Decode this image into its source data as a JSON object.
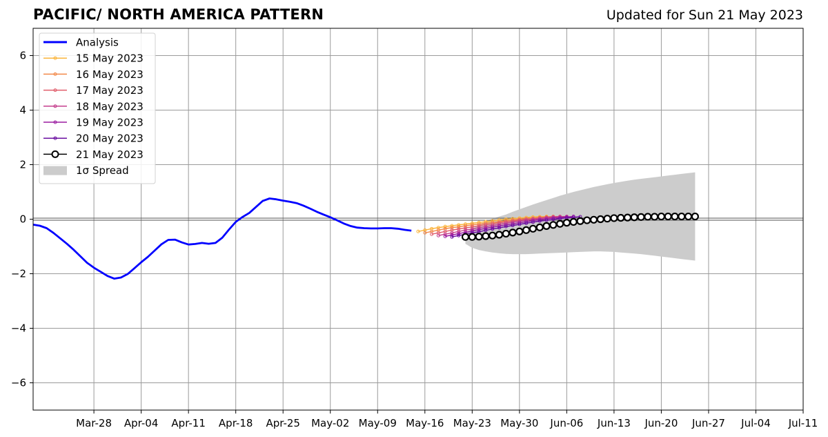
{
  "header": {
    "title": "PACIFIC/ NORTH AMERICA PATTERN",
    "updated": "Updated for Sun 21 May 2023"
  },
  "chart_data": {
    "type": "line",
    "title": "PACIFIC/ NORTH AMERICA PATTERN",
    "subtitle": "Updated for Sun 21 May 2023",
    "xlabel": "",
    "ylabel": "",
    "xlim": [
      "2023-03-19",
      "2023-07-11"
    ],
    "ylim": [
      -7,
      7
    ],
    "grid": true,
    "legend_position": "upper-left",
    "x_ticks": [
      "Mar-28",
      "Apr-04",
      "Apr-11",
      "Apr-18",
      "Apr-25",
      "May-02",
      "May-09",
      "May-16",
      "May-23",
      "May-30",
      "Jun-06",
      "Jun-13",
      "Jun-20",
      "Jun-27",
      "Jul-04",
      "Jul-11"
    ],
    "x_tick_dates": [
      "2023-03-28",
      "2023-04-04",
      "2023-04-11",
      "2023-04-18",
      "2023-04-25",
      "2023-05-02",
      "2023-05-09",
      "2023-05-16",
      "2023-05-23",
      "2023-05-30",
      "2023-06-06",
      "2023-06-13",
      "2023-06-20",
      "2023-06-27",
      "2023-07-04",
      "2023-07-11"
    ],
    "y_ticks": [
      6,
      4,
      2,
      0,
      -2,
      -4,
      -6
    ],
    "y_tick_labels": [
      "6",
      "4",
      "2",
      "0",
      "−2",
      "−4",
      "−6"
    ],
    "legend": [
      "Analysis",
      "15 May 2023",
      "16 May 2023",
      "17 May 2023",
      "18 May 2023",
      "19 May 2023",
      "20 May 2023",
      "21 May 2023",
      "1σ Spread"
    ],
    "analysis": {
      "name": "Analysis",
      "color": "#0000ff",
      "start_date": "2023-03-19",
      "values": [
        -0.2,
        -0.24,
        -0.33,
        -0.5,
        -0.7,
        -0.9,
        -1.12,
        -1.36,
        -1.6,
        -1.78,
        -1.93,
        -2.08,
        -2.18,
        -2.14,
        -2.01,
        -1.8,
        -1.58,
        -1.38,
        -1.15,
        -0.92,
        -0.76,
        -0.75,
        -0.85,
        -0.93,
        -0.91,
        -0.87,
        -0.9,
        -0.87,
        -0.68,
        -0.38,
        -0.1,
        0.08,
        0.23,
        0.45,
        0.67,
        0.76,
        0.73,
        0.68,
        0.64,
        0.59,
        0.5,
        0.39,
        0.27,
        0.17,
        0.07,
        -0.04,
        -0.16,
        -0.25,
        -0.31,
        -0.33,
        -0.34,
        -0.34,
        -0.33,
        -0.33,
        -0.35,
        -0.39,
        -0.42
      ]
    },
    "forecasts": [
      {
        "name": "15 May 2023",
        "color": "#fbb43a",
        "start_date": "2023-05-15",
        "values": [
          -0.45,
          -0.4,
          -0.35,
          -0.31,
          -0.27,
          -0.24,
          -0.21,
          -0.18,
          -0.15,
          -0.12,
          -0.09,
          -0.06,
          -0.03,
          0,
          0.02,
          0.04,
          0.06,
          0.08,
          0.09,
          0.1
        ]
      },
      {
        "name": "16 May 2023",
        "color": "#f28848",
        "start_date": "2023-05-16",
        "values": [
          -0.5,
          -0.45,
          -0.4,
          -0.35,
          -0.31,
          -0.28,
          -0.24,
          -0.21,
          -0.18,
          -0.15,
          -0.12,
          -0.09,
          -0.06,
          -0.03,
          0,
          0.02,
          0.04,
          0.06,
          0.08,
          0.1
        ]
      },
      {
        "name": "17 May 2023",
        "color": "#e05c6a",
        "start_date": "2023-05-17",
        "values": [
          -0.55,
          -0.5,
          -0.45,
          -0.4,
          -0.36,
          -0.32,
          -0.28,
          -0.24,
          -0.2,
          -0.17,
          -0.13,
          -0.1,
          -0.06,
          -0.03,
          0,
          0.02,
          0.05,
          0.07,
          0.09,
          0.1
        ]
      },
      {
        "name": "18 May 2023",
        "color": "#c43e8c",
        "start_date": "2023-05-18",
        "values": [
          -0.6,
          -0.55,
          -0.5,
          -0.45,
          -0.4,
          -0.36,
          -0.31,
          -0.27,
          -0.23,
          -0.19,
          -0.15,
          -0.11,
          -0.07,
          -0.04,
          -0.01,
          0.02,
          0.05,
          0.07,
          0.09,
          0.1
        ]
      },
      {
        "name": "19 May 2023",
        "color": "#9a1aa0",
        "start_date": "2023-05-19",
        "values": [
          -0.63,
          -0.58,
          -0.53,
          -0.48,
          -0.43,
          -0.38,
          -0.34,
          -0.29,
          -0.25,
          -0.21,
          -0.17,
          -0.13,
          -0.09,
          -0.05,
          -0.02,
          0.01,
          0.04,
          0.06,
          0.08,
          0.1
        ]
      },
      {
        "name": "20 May 2023",
        "color": "#6a0da0",
        "start_date": "2023-05-20",
        "values": [
          -0.65,
          -0.6,
          -0.55,
          -0.5,
          -0.46,
          -0.41,
          -0.36,
          -0.32,
          -0.27,
          -0.23,
          -0.19,
          -0.15,
          -0.11,
          -0.07,
          -0.04,
          -0.01,
          0.02,
          0.05,
          0.07,
          0.09
        ]
      }
    ],
    "forecast_main": {
      "name": "21 May 2023",
      "color": "#000000",
      "start_date": "2023-05-22",
      "values": [
        -0.65,
        -0.65,
        -0.64,
        -0.62,
        -0.6,
        -0.57,
        -0.53,
        -0.49,
        -0.45,
        -0.4,
        -0.35,
        -0.3,
        -0.25,
        -0.21,
        -0.17,
        -0.13,
        -0.1,
        -0.07,
        -0.04,
        -0.02,
        0,
        0.02,
        0.04,
        0.05,
        0.06,
        0.07,
        0.08,
        0.09,
        0.09,
        0.1,
        0.1,
        0.1,
        0.1,
        0.1,
        0.1
      ]
    },
    "spread": {
      "name": "1σ Spread",
      "color": "#cccccc",
      "start_date": "2023-05-22",
      "upper": [
        -0.5,
        -0.35,
        -0.2,
        -0.08,
        0.02,
        0.1,
        0.17,
        0.27,
        0.36,
        0.45,
        0.54,
        0.62,
        0.7,
        0.78,
        0.86,
        0.93,
        1.0,
        1.06,
        1.12,
        1.18,
        1.23,
        1.28,
        1.33,
        1.37,
        1.41,
        1.45,
        1.48,
        1.51,
        1.54,
        1.57,
        1.6,
        1.63,
        1.66,
        1.69,
        1.72
      ],
      "lower": [
        -0.9,
        -1.05,
        -1.13,
        -1.18,
        -1.22,
        -1.25,
        -1.27,
        -1.28,
        -1.28,
        -1.28,
        -1.27,
        -1.26,
        -1.25,
        -1.24,
        -1.23,
        -1.22,
        -1.21,
        -1.2,
        -1.19,
        -1.18,
        -1.18,
        -1.19,
        -1.2,
        -1.22,
        -1.24,
        -1.26,
        -1.28,
        -1.31,
        -1.34,
        -1.37,
        -1.4,
        -1.43,
        -1.46,
        -1.49,
        -1.52
      ]
    }
  }
}
